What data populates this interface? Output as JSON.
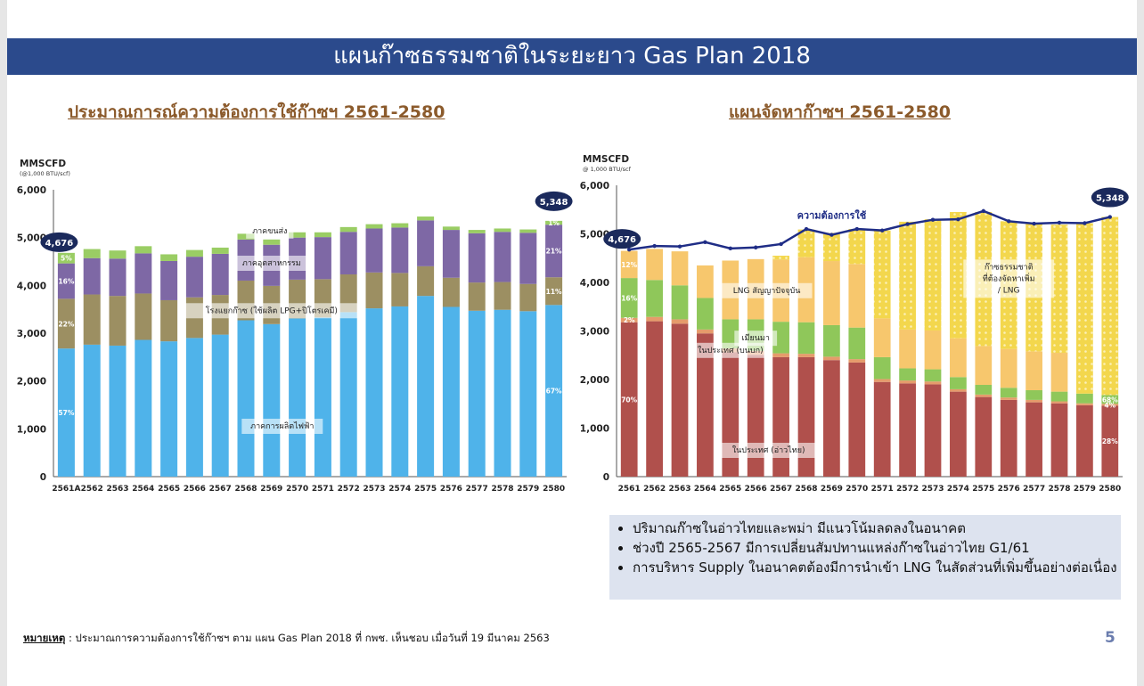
{
  "slide": {
    "title": "แผนก๊าซธรรมชาติในระยะยาว Gas Plan 2018",
    "left_subtitle": "ประมาณการณ์ความต้องการใช้ก๊าซฯ 2561-2580",
    "right_subtitle": "แผนจัดหาก๊าซฯ 2561-2580",
    "bullets": [
      "ปริมาณก๊าซในอ่าวไทยและพม่า มีแนวโน้มลดลงในอนาคต",
      "ช่วงปี 2565-2567 มีการเปลี่ยนสัมปทานแหล่งก๊าซในอ่าวไทย G1/61",
      "การบริหาร Supply ในอนาคตต้องมีการนำเข้า LNG ในสัดส่วนที่เพิ่มขึ้นอย่างต่อเนื่อง"
    ],
    "note_label": "หมายเหตุ",
    "note_text": " : ประมาณการความต้องการใช้ก๊าซฯ ตาม แผน Gas Plan 2018 ที่ กพช. เห็นชอบ เมื่อวันที่ 19 มีนาคม 2563",
    "page_number": "5"
  },
  "chart_data": [
    {
      "type": "bar",
      "stacked": true,
      "title": "ประมาณการณ์ความต้องการใช้ก๊าซฯ 2561-2580",
      "ylabel": "MMSCFD",
      "ylabel_sub": "(@1,000 BTU/scf)",
      "ylim": [
        0,
        6000
      ],
      "yticks": [
        "0",
        "1,000",
        "2,000",
        "3,000",
        "4,000",
        "5,000",
        "6,000"
      ],
      "categories": [
        "2561A",
        "2562",
        "2563",
        "2564",
        "2565",
        "2566",
        "2567",
        "2568",
        "2569",
        "2570",
        "2571",
        "2572",
        "2573",
        "2574",
        "2575",
        "2576",
        "2577",
        "2578",
        "2579",
        "2580"
      ],
      "series": [
        {
          "name": "ภาคการผลิตไฟฟ้า",
          "color": "#4fb3ea",
          "values": [
            2680,
            2760,
            2740,
            2860,
            2830,
            2900,
            2970,
            3270,
            3190,
            3310,
            3330,
            3440,
            3520,
            3560,
            3780,
            3550,
            3470,
            3490,
            3460,
            3590
          ]
        },
        {
          "name": "โรงแยกก๊าซ (ใช้ผลิต LPG+ปิโตรเคมี)",
          "color": "#9c8f62",
          "values": [
            1040,
            1050,
            1040,
            970,
            860,
            850,
            830,
            830,
            800,
            810,
            800,
            790,
            750,
            700,
            620,
            610,
            590,
            580,
            570,
            580
          ]
        },
        {
          "name": "ภาคอุตสาหกรรม",
          "color": "#7e68a5",
          "values": [
            740,
            760,
            780,
            840,
            820,
            850,
            860,
            860,
            860,
            880,
            880,
            890,
            920,
            950,
            960,
            1000,
            1030,
            1050,
            1070,
            1100
          ]
        },
        {
          "name": "ภาคขนส่ง",
          "color": "#9acd64",
          "values": [
            220,
            190,
            170,
            150,
            140,
            140,
            130,
            120,
            110,
            110,
            100,
            100,
            90,
            90,
            80,
            70,
            70,
            70,
            70,
            80
          ]
        }
      ],
      "callouts": [
        {
          "category": "2561A",
          "value": "4,676"
        },
        {
          "category": "2580",
          "value": "5,348"
        }
      ],
      "percent_labels": {
        "2561A": [
          "57%",
          "22%",
          "16%",
          "5%"
        ],
        "2580": [
          "67%",
          "11%",
          "21%",
          "1%"
        ]
      }
    },
    {
      "type": "bar",
      "stacked": true,
      "title": "แผนจัดหาก๊าซฯ 2561-2580",
      "ylabel": "MMSCFD",
      "ylabel_sub": "@ 1,000 BTU/scf",
      "ylim": [
        0,
        6000
      ],
      "yticks": [
        "0",
        "1,000",
        "2,000",
        "3,000",
        "4,000",
        "5,000",
        "6,000"
      ],
      "categories": [
        "2561",
        "2562",
        "2563",
        "2564",
        "2565",
        "2566",
        "2567",
        "2568",
        "2569",
        "2570",
        "2571",
        "2572",
        "2573",
        "2574",
        "2575",
        "2576",
        "2577",
        "2578",
        "2579",
        "2580"
      ],
      "series": [
        {
          "name": "ในประเทศ (อ่าวไทย)",
          "color": "#b0504c",
          "values": [
            3180,
            3200,
            3150,
            2950,
            2560,
            2510,
            2460,
            2460,
            2400,
            2350,
            1950,
            1920,
            1900,
            1750,
            1640,
            1580,
            1530,
            1510,
            1470,
            1460
          ]
        },
        {
          "name": "ในประเทศ (บนบก)",
          "color": "#e59b6b",
          "values": [
            90,
            90,
            90,
            80,
            80,
            80,
            80,
            70,
            70,
            70,
            60,
            60,
            60,
            50,
            50,
            50,
            50,
            40,
            40,
            40
          ]
        },
        {
          "name": "เมียนมา",
          "color": "#8fc75a",
          "values": [
            820,
            760,
            700,
            650,
            600,
            650,
            650,
            650,
            650,
            650,
            450,
            250,
            250,
            250,
            200,
            200,
            200,
            200,
            200,
            180
          ]
        },
        {
          "name": "LNG สัญญาปัจจุบัน",
          "color": "#f7c76d",
          "values": [
            560,
            640,
            700,
            670,
            1210,
            1240,
            1280,
            1340,
            1320,
            1310,
            800,
            800,
            800,
            800,
            800,
            800,
            800,
            800,
            0,
            0
          ]
        },
        {
          "name": "ก๊าซธรรมชาติที่ต้องจัดหาเพิ่ม / LNG",
          "color": "#f3d74d",
          "patterned": true,
          "values": [
            0,
            0,
            0,
            0,
            0,
            0,
            80,
            570,
            580,
            720,
            1810,
            2220,
            2290,
            2600,
            2760,
            2630,
            2630,
            2640,
            3510,
            3668
          ]
        }
      ],
      "line": {
        "name": "ความต้องการใช้",
        "color": "#1f2d86",
        "values": [
          4676,
          4750,
          4740,
          4830,
          4700,
          4720,
          4790,
          5100,
          4980,
          5100,
          5070,
          5200,
          5290,
          5300,
          5470,
          5260,
          5210,
          5230,
          5220,
          5348
        ]
      },
      "callouts": [
        {
          "category": "2561",
          "value": "4,676"
        },
        {
          "category": "2580",
          "value": "5,348"
        }
      ],
      "percent_labels": {
        "2561": [
          "70%",
          "2%",
          "16%",
          "12%"
        ],
        "2580": [
          "28%",
          "4%",
          "68%"
        ]
      }
    }
  ]
}
